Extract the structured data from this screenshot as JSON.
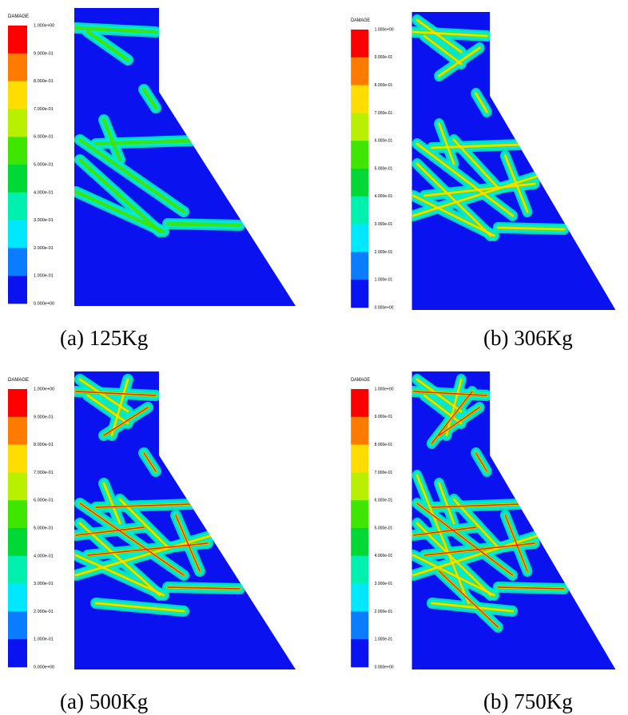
{
  "legend": {
    "title": "DAMAGE",
    "labels": [
      "1.000e+00",
      "9.000e-01",
      "8.000e-01",
      "7.000e-01",
      "6.000e-01",
      "5.000e-01",
      "4.000e-01",
      "3.000e-01",
      "2.000e-01",
      "1.000e-01",
      "0.000e+00"
    ],
    "colors": [
      "#ff0000",
      "#ff7a00",
      "#ffdd00",
      "#b8f000",
      "#3ee600",
      "#00d836",
      "#00f0b0",
      "#00e8ff",
      "#0a7cff",
      "#0a12f0"
    ]
  },
  "panels": [
    {
      "caption": "(a) 125Kg"
    },
    {
      "caption": "(b) 306Kg"
    },
    {
      "caption": "(a) 500Kg"
    },
    {
      "caption": "(b) 750Kg"
    }
  ]
}
